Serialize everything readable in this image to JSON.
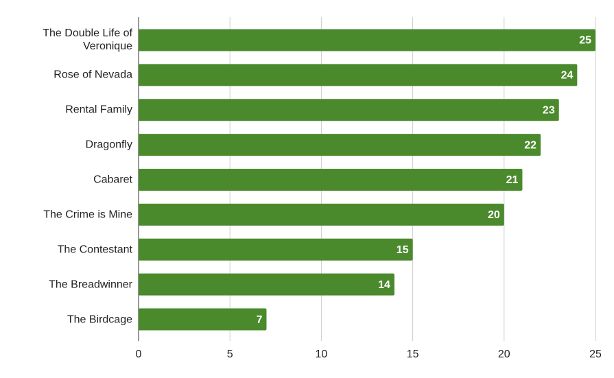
{
  "chart_data": {
    "type": "bar",
    "orientation": "horizontal",
    "categories": [
      "The Double Life of Veronique",
      "Rose of Nevada",
      "Rental Family",
      "Dragonfly",
      "Cabaret",
      "The Crime is Mine",
      "The Contestant",
      "The Breadwinner",
      "The Birdcage"
    ],
    "values": [
      25,
      24,
      23,
      22,
      21,
      20,
      15,
      14,
      7
    ],
    "color": "#4a8a2c",
    "xlim": [
      0,
      25
    ],
    "xticks": [
      0,
      5,
      10,
      15,
      20,
      25
    ],
    "grid": true
  }
}
